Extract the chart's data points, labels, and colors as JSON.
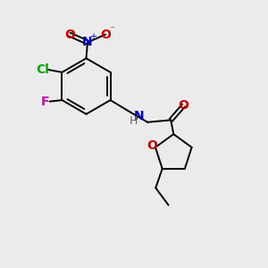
{
  "bg_color": "#ebebeb",
  "bond_color": "#000000",
  "atom_colors": {
    "N_nitro": "#0000cc",
    "O": "#cc0000",
    "Cl": "#00aa00",
    "F": "#cc00cc",
    "N_amide": "#0000cc",
    "H": "#666666"
  },
  "figsize": [
    3.0,
    3.0
  ],
  "dpi": 100,
  "xlim": [
    0,
    10
  ],
  "ylim": [
    0,
    10
  ]
}
